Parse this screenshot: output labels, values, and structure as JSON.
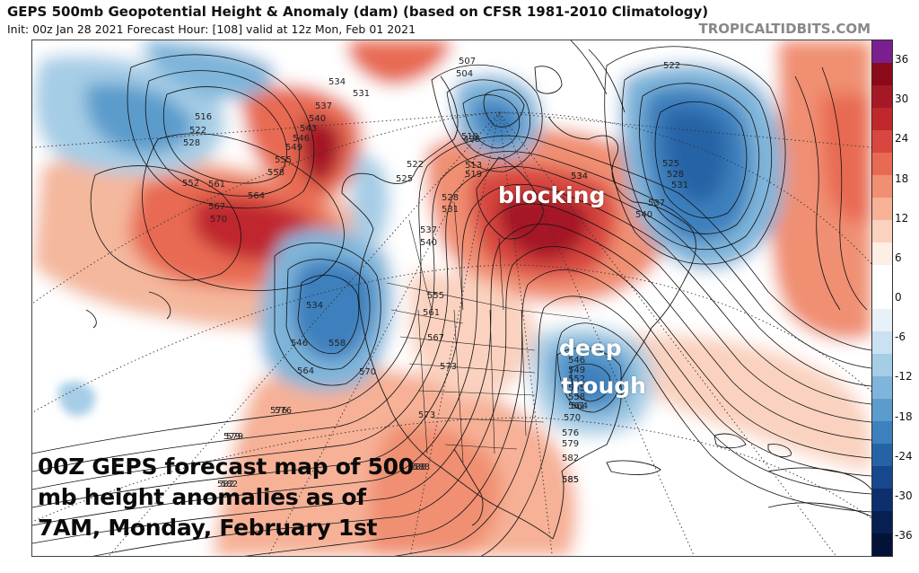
{
  "header": {
    "title": "GEPS 500mb Geopotential Height & Anomaly (dam) (based on CFSR 1981-2010 Climatology)",
    "subtitle": "Init: 00z Jan 28 2021   Forecast Hour: [108]   valid at 12z Mon, Feb 01 2021",
    "credit": "TROPICALTIDBITS.COM"
  },
  "caption": {
    "lines": [
      "00Z GEPS forecast map of 500",
      "mb height anomalies as of",
      "7AM, Monday, February 1st"
    ]
  },
  "annotations": {
    "blocking": "blocking",
    "deep": "deep",
    "trough": "trough"
  },
  "colorbar": {
    "labels": [
      "36",
      "30",
      "24",
      "18",
      "12",
      "6",
      "0",
      "-6",
      "-12",
      "-18",
      "-24",
      "-30",
      "-36"
    ],
    "colors": [
      "#7a1f8f",
      "#8b0a1a",
      "#a51826",
      "#c0272d",
      "#d8473f",
      "#e86a52",
      "#f08f72",
      "#f6b196",
      "#fad2bf",
      "#fdeee6",
      "#ffffff",
      "#ffffff",
      "#e7f1f8",
      "#c9e1f0",
      "#a6cde6",
      "#7fb5da",
      "#5b9ccc",
      "#3d80bd",
      "#2563a6",
      "#17478c",
      "#0e2f6e",
      "#081f52",
      "#051238"
    ]
  },
  "height_labels": [
    "516",
    "522",
    "528",
    "534",
    "531",
    "537",
    "540",
    "543",
    "546",
    "549",
    "552",
    "555",
    "558",
    "561",
    "564",
    "567",
    "570",
    "573",
    "576",
    "579",
    "582",
    "585",
    "588",
    "498",
    "504",
    "507",
    "510",
    "513",
    "519",
    "525",
    "522",
    "528",
    "531",
    "534",
    "537",
    "540",
    "534",
    "546",
    "558",
    "564",
    "570",
    "555",
    "561",
    "567",
    "573",
    "546",
    "549",
    "552",
    "555",
    "558",
    "561",
    "564",
    "570",
    "576",
    "579",
    "582",
    "585",
    "522",
    "525",
    "528",
    "531",
    "534",
    "537",
    "540",
    "576",
    "579",
    "582",
    "588"
  ]
}
